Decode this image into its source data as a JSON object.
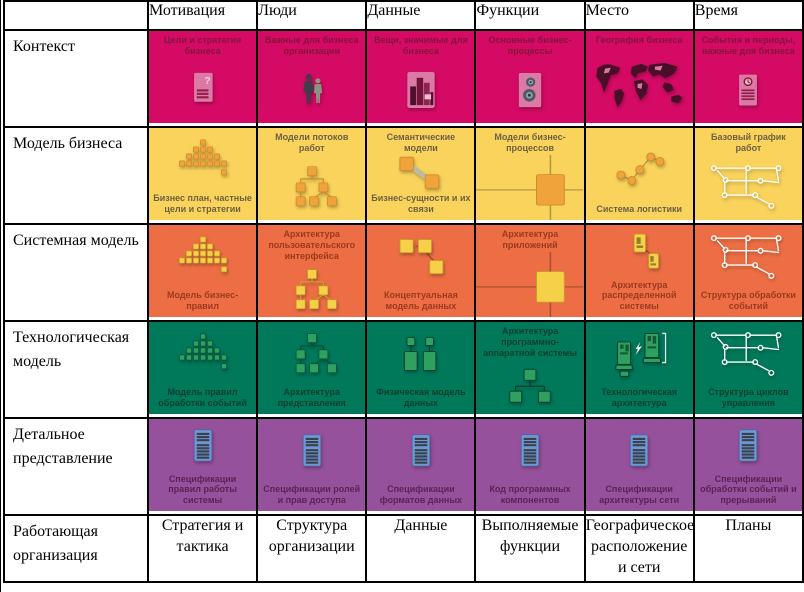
{
  "table": {
    "column_headers": [
      "Мотивация",
      "Люди",
      "Данные",
      "Функции",
      "Место",
      "Время"
    ],
    "rows": [
      {
        "name": "Контекст",
        "colors": {
          "tile": "#d40a64",
          "label": "#87143c",
          "icon_fill": "#db7aa5",
          "icon_dark": "#97214e",
          "icon_edge": "#b24579"
        },
        "cells": [
          {
            "icon": "doc-question-icon",
            "label_top": "Цели и стратегия бизнеса"
          },
          {
            "icon": "people-icon",
            "label_top": "Важные для бизнеса организации"
          },
          {
            "icon": "buildings-icon",
            "label_top": "Вещи, значимые для бизнеса"
          },
          {
            "icon": "doc-gears-icon",
            "label_top": "Основные бизнес-процессы"
          },
          {
            "icon": "world-map-icon",
            "label_top": "География бизнеса"
          },
          {
            "icon": "doc-clock-icon",
            "label_top": "События и периоды, важные для бизнеса"
          }
        ]
      },
      {
        "name": "Модель бизнеса",
        "colors": {
          "tile": "#f9d35b",
          "label": "#6d6144",
          "icon_fill": "#f0a23b",
          "icon_dark": "#7c5f1e",
          "icon_edge": "#cd8c2b"
        },
        "cells": [
          {
            "icon": "pyramid-icon",
            "label_bottom": "Бизнес план, частные цели и стратегии"
          },
          {
            "icon": "org-chart-icon",
            "label_top": "Модели потоков работ"
          },
          {
            "icon": "linked-squares-2-icon",
            "label_top": "Семантические модели",
            "label_bottom": "Бизнес-сущности и их связи"
          },
          {
            "icon": "process-rect-icon",
            "label_top": "Модели бизнес-процессов"
          },
          {
            "icon": "network-nodes-icon",
            "label_bottom": "Система логистики"
          },
          {
            "icon": "flow-white-icon",
            "label_top": "Базовый график работ"
          }
        ]
      },
      {
        "name": "Системная модель",
        "colors": {
          "tile": "#ed6e44",
          "label": "#9c3a1e",
          "icon_fill": "#f6d049",
          "icon_dark": "#8a6a1a",
          "icon_edge": "#c8a028"
        },
        "cells": [
          {
            "icon": "pyramid-icon",
            "label_bottom": "Модель бизнес-правил"
          },
          {
            "icon": "org-chart-icon",
            "label_top": "Архитектура пользовательского интерфейса"
          },
          {
            "icon": "linked-squares-3-icon",
            "label_bottom": "Концептуальная модель данных"
          },
          {
            "icon": "process-rect-icon",
            "label_top": "Архитектура приложений"
          },
          {
            "icon": "distributed-nodes-icon",
            "label_bottom": "Архитектура распределенной системы"
          },
          {
            "icon": "flow-white-icon",
            "label_bottom": "Структура обработки событий"
          }
        ]
      },
      {
        "name": "Технологическая модель",
        "colors": {
          "tile": "#00795a",
          "label": "#063f2e",
          "icon_fill": "#2ea161",
          "icon_dark": "#05382a",
          "icon_edge": "#0b4f38"
        },
        "cells": [
          {
            "icon": "pyramid-icon",
            "label_bottom": "Модель правил обработки событий"
          },
          {
            "icon": "org-chart-icon",
            "label_bottom": "Архитектура представления"
          },
          {
            "icon": "physical-data-icon",
            "label_bottom": "Физическая модель данных"
          },
          {
            "icon": "tree-icon",
            "label_top": "Архитектура программно-аппаратной системы"
          },
          {
            "icon": "computers-icon",
            "label_bottom": "Технологическая архитектура"
          },
          {
            "icon": "flow-white-icon",
            "label_bottom": "Структура циклов управления"
          }
        ]
      },
      {
        "name": "Детальное представление",
        "colors": {
          "tile": "#95519b",
          "label": "#5b2356",
          "icon_fill": "#6d97d7",
          "icon_dark": "#3a4149",
          "icon_edge": "#4a6496"
        },
        "cells": [
          {
            "icon": "spec-doc-icon",
            "label_bottom": "Спецификации правил работы системы"
          },
          {
            "icon": "spec-doc-icon",
            "label_bottom": "Спецификации ролей и прав доступа"
          },
          {
            "icon": "spec-doc-icon",
            "label_bottom": "Спецификации форматов данных"
          },
          {
            "icon": "spec-doc-icon",
            "label_bottom": "Код программных компонентов"
          },
          {
            "icon": "spec-doc-icon",
            "label_bottom": "Спецификации архитектуры сети"
          },
          {
            "icon": "spec-doc-icon",
            "label_bottom": "Спецификации обработки событий и прерываний"
          }
        ]
      }
    ],
    "footer": {
      "header": "Работающая организация",
      "cells": [
        "Стратегия и тактика",
        "Структура организации",
        "Данные",
        "Выполняемые функции",
        "Географическое расположение и сети",
        "Планы"
      ]
    }
  }
}
